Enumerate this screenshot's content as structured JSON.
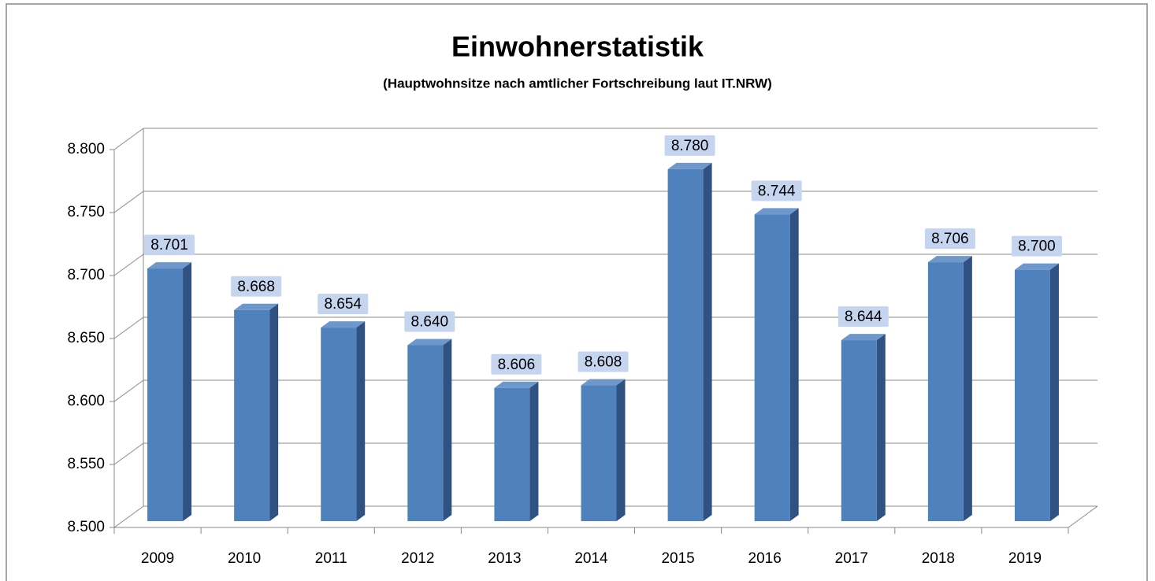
{
  "chart_data": {
    "type": "bar3d",
    "title": "Einwohnerstatistik",
    "subtitle": "(Hauptwohnsitze nach amtlicher Fortschreibung laut IT.NRW)",
    "categories": [
      "2009",
      "2010",
      "2011",
      "2012",
      "2013",
      "2014",
      "2015",
      "2016",
      "2017",
      "2018",
      "2019"
    ],
    "values": [
      8701,
      8668,
      8654,
      8640,
      8606,
      8608,
      8780,
      8744,
      8644,
      8706,
      8700
    ],
    "value_labels": [
      "8.701",
      "8.668",
      "8.654",
      "8.640",
      "8.606",
      "8.608",
      "8.780",
      "8.744",
      "8.644",
      "8.706",
      "8.700"
    ],
    "color": "#4f81bd",
    "ylim": [
      8500,
      8800
    ],
    "yticks": [
      {
        "value": 8500,
        "label": "8.500"
      },
      {
        "value": 8550,
        "label": "8.550"
      },
      {
        "value": 8600,
        "label": "8.600"
      },
      {
        "value": 8650,
        "label": "8.650"
      },
      {
        "value": 8700,
        "label": "8.700"
      },
      {
        "value": 8750,
        "label": "8.750"
      },
      {
        "value": 8800,
        "label": "8.800"
      }
    ],
    "grid": true
  }
}
